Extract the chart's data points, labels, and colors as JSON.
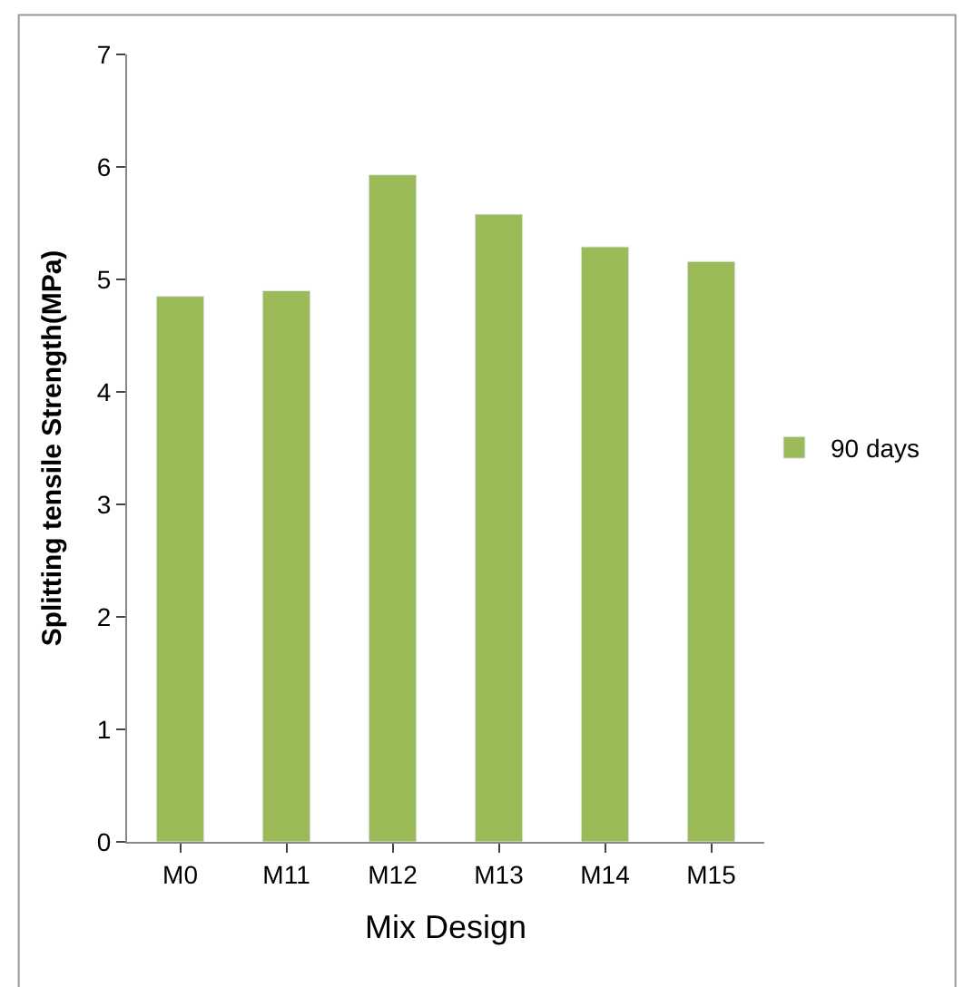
{
  "chart_data": {
    "type": "bar",
    "xlabel": "Mix Design",
    "ylabel": "Splitting tensile Strength(MPa)",
    "categories": [
      "M0",
      "M11",
      "M12",
      "M13",
      "M14",
      "M15"
    ],
    "series": [
      {
        "name": "90 days",
        "color": "#9bbb59",
        "values": [
          4.85,
          4.9,
          5.93,
          5.58,
          5.29,
          5.16
        ]
      }
    ],
    "ylim": [
      0,
      7
    ],
    "yticks": [
      0,
      1,
      2,
      3,
      4,
      5,
      6,
      7
    ],
    "legend": "right"
  }
}
